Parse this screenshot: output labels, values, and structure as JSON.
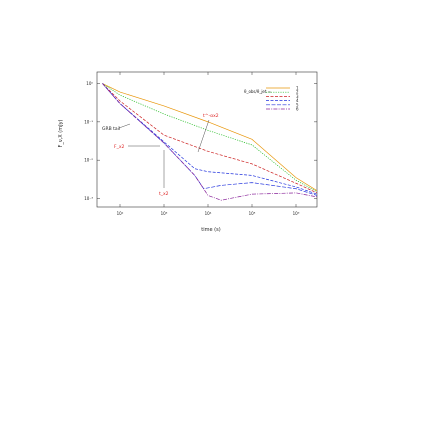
{
  "chart_data": {
    "type": "line",
    "title": "",
    "xlabel": "time (s)",
    "ylabel": "F_ν,X (mJy)",
    "xscale": "log",
    "yscale": "log",
    "xlim": [
      30,
      3000000
    ],
    "ylim": [
      0.0006,
      2
    ],
    "xticks": [
      {
        "value": 100,
        "label": "10²"
      },
      {
        "value": 1000,
        "label": "10³"
      },
      {
        "value": 10000,
        "label": "10⁴"
      },
      {
        "value": 100000,
        "label": "10⁵"
      },
      {
        "value": 1000000,
        "label": "10⁶"
      }
    ],
    "yticks": [
      {
        "value": 1,
        "label": "10⁰"
      },
      {
        "value": 0.1,
        "label": "10⁻¹"
      },
      {
        "value": 0.01,
        "label": "10⁻²"
      },
      {
        "value": 0.001,
        "label": "10⁻³"
      }
    ],
    "grid": false,
    "legend": {
      "placement": "top-right",
      "title": "θ_obs/θ_jet =",
      "entries": [
        "1",
        "2",
        "3",
        "4",
        "5",
        "6"
      ]
    },
    "series": [
      {
        "name": "1",
        "color": "#e8960a",
        "dash": "",
        "x": [
          40,
          100,
          1000,
          10000,
          100000,
          1000000,
          3000000
        ],
        "y": [
          1.0,
          0.6,
          0.26,
          0.1,
          0.035,
          0.0035,
          0.0016
        ]
      },
      {
        "name": "2",
        "color": "#22bb22",
        "dash": "1.2,1.2",
        "x": [
          40,
          100,
          1000,
          10000,
          100000,
          1000000,
          3000000
        ],
        "y": [
          1.0,
          0.5,
          0.16,
          0.06,
          0.025,
          0.003,
          0.0015
        ]
      },
      {
        "name": "3",
        "color": "#cc2222",
        "dash": "3,1.5",
        "x": [
          40,
          100,
          1000,
          10000,
          100000,
          1000000,
          3000000
        ],
        "y": [
          1.0,
          0.35,
          0.045,
          0.017,
          0.008,
          0.0025,
          0.0014
        ]
      },
      {
        "name": "4",
        "color": "#2233dd",
        "dash": "3,1.5",
        "x": [
          40,
          100,
          1000,
          5000,
          10000,
          100000,
          1000000,
          3000000
        ],
        "y": [
          1.0,
          0.3,
          0.03,
          0.006,
          0.005,
          0.004,
          0.002,
          0.0013
        ]
      },
      {
        "name": "5",
        "color": "#2233dd",
        "dash": "4,1.5",
        "x": [
          40,
          100,
          1000,
          5000,
          8000,
          20000,
          100000,
          1000000,
          3000000
        ],
        "y": [
          1.0,
          0.3,
          0.028,
          0.004,
          0.0018,
          0.0022,
          0.0026,
          0.0018,
          0.0012
        ]
      },
      {
        "name": "6",
        "color": "#882299",
        "dash": "4,1.2,1,1.2",
        "x": [
          40,
          100,
          1000,
          5000,
          10000,
          20000,
          100000,
          1000000,
          3000000
        ],
        "y": [
          1.0,
          0.3,
          0.028,
          0.004,
          0.0012,
          0.0009,
          0.0013,
          0.0014,
          0.0011
        ]
      }
    ],
    "annotations": [
      {
        "text": "GRB tail",
        "color": "#222222"
      },
      {
        "text": "F_x2",
        "color": "#dd2222"
      },
      {
        "text": "t_x2",
        "color": "#dd2222"
      },
      {
        "text": "t^-αx2",
        "color": "#dd2222"
      }
    ]
  }
}
